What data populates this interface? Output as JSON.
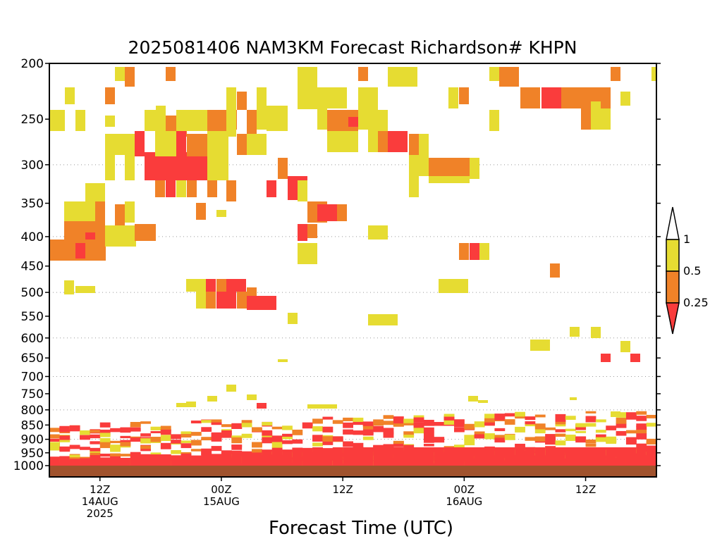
{
  "chart_data": {
    "type": "heatmap",
    "title": "2025081406 NAM3KM Forecast Richardson# KHPN",
    "xlabel": "Forecast Time (UTC)",
    "ylabel": "",
    "y_scale": "log",
    "y_inverted": true,
    "ylim": [
      200,
      1050
    ],
    "y_ticks": [
      200,
      250,
      300,
      350,
      400,
      450,
      500,
      550,
      600,
      650,
      700,
      750,
      800,
      850,
      900,
      950,
      1000
    ],
    "y_grid_levels": [
      300,
      400,
      500,
      600,
      700,
      800,
      900
    ],
    "x_start": "2025-08-14 07Z",
    "x_end": "2025-08-16 19Z",
    "x_ticks": [
      {
        "time": "2025-08-14 12Z",
        "label": [
          "12Z",
          "14AUG",
          "2025"
        ]
      },
      {
        "time": "2025-08-15 00Z",
        "label": [
          "00Z",
          "15AUG"
        ]
      },
      {
        "time": "2025-08-15 12Z",
        "label": [
          "12Z"
        ]
      },
      {
        "time": "2025-08-16 00Z",
        "label": [
          "00Z",
          "16AUG"
        ]
      },
      {
        "time": "2025-08-16 12Z",
        "label": [
          "12Z"
        ]
      }
    ],
    "legend": {
      "placement": "right",
      "levels": [
        {
          "label": "1",
          "value": 1
        },
        {
          "label": "0.5",
          "value": 0.5
        },
        {
          "label": "0.25",
          "value": 0.25
        }
      ],
      "bins": [
        {
          "range": "> 1",
          "color": "#ffffff"
        },
        {
          "range": "0.5 – 1",
          "color": "#e6dc32"
        },
        {
          "range": "0.25 – 0.5",
          "color": "#f08228"
        },
        {
          "range": "< 0.25",
          "color": "#fa3c3c"
        }
      ]
    },
    "ground_color": "#a0522d",
    "cells": [
      {
        "t0": "14/18Z",
        "t1": "14/20Z",
        "p0": 267,
        "p1": 298,
        "bin": "<0.25"
      },
      {
        "t0": "14/19Z",
        "t1": "14/24Z",
        "p0": 298,
        "p1": 328,
        "bin": "<0.25"
      },
      {
        "t0": "14/22Z",
        "t1": "15/01Z",
        "p0": 267,
        "p1": 298,
        "bin": "<0.25"
      },
      {
        "t0": "14/09Z",
        "t1": "14/10Z",
        "p0": 402,
        "p1": 418,
        "bin": "<0.25"
      },
      {
        "t0": "14/06Z",
        "t1": "14/12Z",
        "p0": 418,
        "p1": 440,
        "bin": "0.25-0.5"
      },
      {
        "t0": "15/00Z",
        "t1": "15/05Z",
        "p0": 480,
        "p1": 498,
        "bin": "<0.25"
      },
      {
        "t0": "15/02Z",
        "t1": "15/06Z",
        "p0": 500,
        "p1": 520,
        "bin": "<0.25"
      },
      {
        "t0": "15/07Z",
        "t1": "15/09Z",
        "p0": 320,
        "p1": 348,
        "bin": "<0.25"
      },
      {
        "t0": "15/10Z",
        "t1": "15/12Z",
        "p0": 355,
        "p1": 370,
        "bin": "<0.25"
      },
      {
        "t0": "15/18Z",
        "t1": "15/20Z",
        "p0": 265,
        "p1": 292,
        "bin": "<0.25"
      },
      {
        "t0": "16/10Z",
        "t1": "16/12Z",
        "p0": 225,
        "p1": 240,
        "bin": "<0.25"
      },
      {
        "t0": "14/07Z",
        "t1": "16/19Z",
        "p0": 880,
        "p1": 1000,
        "bin": "mixed"
      }
    ]
  }
}
